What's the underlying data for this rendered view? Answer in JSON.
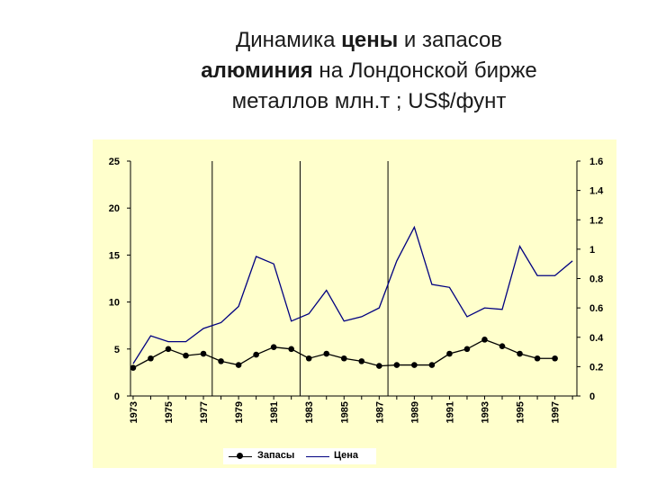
{
  "title": {
    "line1_a": "Динамика ",
    "line1_b": "цены",
    "line1_c": " и запасов",
    "line2_a": "алюминия",
    "line2_b": " на Лондонской бирже",
    "line3": "металлов млн.т ; US$/фунт"
  },
  "chart_data": {
    "type": "line",
    "title": "Динамика цены и запасов алюминия на Лондонской бирже металлов млн.т ; US$/фунт",
    "x": [
      1973,
      1974,
      1975,
      1976,
      1977,
      1978,
      1979,
      1980,
      1981,
      1982,
      1983,
      1984,
      1985,
      1986,
      1987,
      1988,
      1989,
      1990,
      1991,
      1992,
      1993,
      1994,
      1995,
      1996,
      1997,
      1998
    ],
    "x_tick_labels": [
      "1973",
      "1975",
      "1977",
      "1979",
      "1981",
      "1983",
      "1985",
      "1987",
      "1989",
      "1991",
      "1993",
      "1995",
      "1997"
    ],
    "y_left": {
      "ylim": [
        0,
        25
      ],
      "ticks": [
        "0",
        "5",
        "10",
        "15",
        "20",
        "25"
      ]
    },
    "y_right": {
      "ylim": [
        0,
        1.6
      ],
      "ticks": [
        "0",
        "0.2",
        "0.4",
        "0.6",
        "0.8",
        "1",
        "1.2",
        "1.4",
        "1.6"
      ]
    },
    "vertical_reference_lines": [
      1977.5,
      1982.5,
      1987.5
    ],
    "grid": false,
    "legend_position": "bottom",
    "series": [
      {
        "name": "Запасы",
        "axis": "left",
        "color": "#000000",
        "marker": "circle",
        "x": [
          1973,
          1974,
          1975,
          1976,
          1977,
          1978,
          1979,
          1980,
          1981,
          1982,
          1983,
          1984,
          1985,
          1986,
          1987,
          1988,
          1989,
          1990,
          1991,
          1992,
          1993,
          1994,
          1995,
          1996,
          1997
        ],
        "values": [
          3,
          4,
          5,
          4.3,
          4.5,
          3.7,
          3.3,
          4.4,
          5.2,
          5,
          4,
          4.5,
          4,
          3.7,
          3.2,
          3.3,
          3.3,
          3.3,
          4.5,
          5,
          6,
          5.3,
          4.5,
          4,
          4
        ]
      },
      {
        "name": "Цена",
        "axis": "right",
        "color": "#000080",
        "marker": "none",
        "x": [
          1973,
          1974,
          1975,
          1976,
          1977,
          1978,
          1979,
          1980,
          1981,
          1982,
          1983,
          1984,
          1985,
          1986,
          1987,
          1988,
          1989,
          1990,
          1991,
          1992,
          1993,
          1994,
          1995,
          1996,
          1997,
          1998
        ],
        "values": [
          0.22,
          0.41,
          0.37,
          0.37,
          0.46,
          0.5,
          0.61,
          0.95,
          0.9,
          0.51,
          0.56,
          0.72,
          0.51,
          0.54,
          0.6,
          0.92,
          1.15,
          0.76,
          0.74,
          0.54,
          0.6,
          0.59,
          1.02,
          0.82,
          0.82,
          0.92
        ]
      }
    ]
  },
  "colors": {
    "panel_background": "#ffffcc",
    "stocks_series": "#000000",
    "price_series": "#000080"
  }
}
